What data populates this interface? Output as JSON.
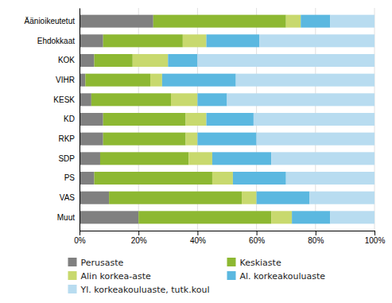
{
  "chart_data": {
    "type": "bar",
    "orientation": "horizontal",
    "stacked": true,
    "categories": [
      "Äänioikeutetut",
      "Ehdokkaat",
      "KOK",
      "VIHR",
      "KESK",
      "KD",
      "RKP",
      "SDP",
      "PS",
      "VAS",
      "Muut"
    ],
    "series": [
      {
        "name": "Perusaste",
        "color": "#808080",
        "values": [
          25,
          8,
          5,
          2,
          4,
          8,
          8,
          7,
          5,
          10,
          20
        ]
      },
      {
        "name": "Keskiaste",
        "color": "#8db832",
        "values": [
          45,
          27,
          13,
          22,
          27,
          28,
          28,
          30,
          40,
          45,
          45
        ]
      },
      {
        "name": "Alin korkea-aste",
        "color": "#c8d96e",
        "values": [
          5,
          8,
          12,
          4,
          9,
          7,
          4,
          8,
          7,
          5,
          7
        ]
      },
      {
        "name": "Al. korkeakouluaste",
        "color": "#5bb8e0",
        "values": [
          10,
          18,
          10,
          25,
          10,
          16,
          20,
          20,
          18,
          18,
          13
        ]
      },
      {
        "name": "Yl. korkeakouluaste, tutk.koul",
        "color": "#b8dcf0",
        "values": [
          15,
          39,
          60,
          47,
          50,
          41,
          40,
          35,
          30,
          22,
          15
        ]
      }
    ],
    "xlim": [
      0,
      100
    ],
    "xticks": [
      {
        "value": 0,
        "label": "0%"
      },
      {
        "value": 20,
        "label": "20%"
      },
      {
        "value": 40,
        "label": "40%"
      },
      {
        "value": 60,
        "label": "60%"
      },
      {
        "value": 80,
        "label": "80%"
      },
      {
        "value": 100,
        "label": "100%"
      }
    ],
    "grid": true,
    "legend": "bottom"
  }
}
